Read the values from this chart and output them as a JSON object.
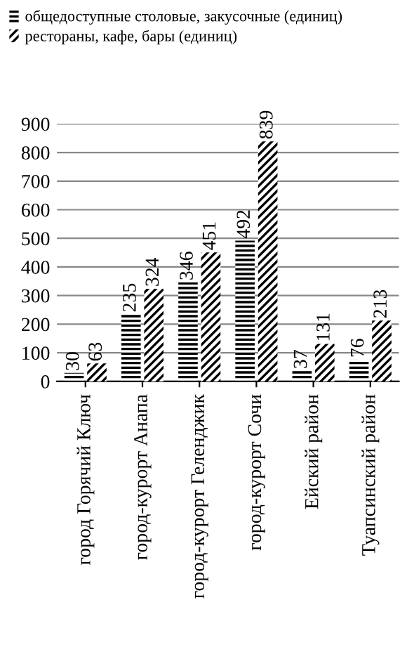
{
  "chart_data": {
    "type": "bar",
    "categories": [
      "город Горячий Ключ",
      "город-курорт Анапа",
      "город-курорт Геленджик",
      "город-курорт Сочи",
      "Ейский район",
      "Туапсинский район"
    ],
    "series": [
      {
        "name": "общедоступные столовые, закусочные (единиц)",
        "color": "#000000",
        "values": [
          30,
          235,
          346,
          492,
          37,
          76
        ]
      },
      {
        "name": "рестораны, кафе, бары (единиц)",
        "color": "#000000",
        "values": [
          63,
          324,
          451,
          839,
          131,
          213
        ]
      }
    ],
    "ylim": [
      0,
      900
    ],
    "yticks": [
      0,
      100,
      200,
      300,
      400,
      500,
      600,
      700,
      800,
      900
    ],
    "grid": "y",
    "legend": "top",
    "data_labels": true
  }
}
